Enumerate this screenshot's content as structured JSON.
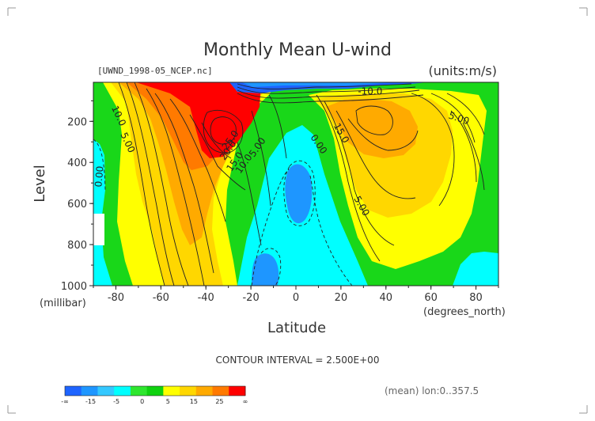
{
  "page": {
    "title": "Monthly Mean U-wind",
    "file_label": "[UWND_1998-05_NCEP.nc]",
    "units_label": "(units:m/s)",
    "contour_interval": "CONTOUR INTERVAL = 2.500E+00",
    "mean_note": "(mean) lon:0..357.5"
  },
  "chart_data": {
    "type": "heatmap",
    "title": "Monthly Mean U-wind",
    "units": "m/s",
    "xlabel": "Latitude",
    "ylabel": "Level",
    "xlim": [
      -90,
      90
    ],
    "ylim": [
      1000,
      10
    ],
    "x_ticks": [
      -80,
      -60,
      -40,
      -20,
      0,
      20,
      40,
      60,
      80
    ],
    "y_ticks": [
      1000,
      800,
      600,
      400,
      200
    ],
    "x_tick_labels": [
      "-80",
      "-60",
      "-40",
      "-20",
      "0",
      "20",
      "40",
      "60",
      "80"
    ],
    "y_tick_labels": [
      "1000",
      "800",
      "600",
      "400",
      "200"
    ],
    "x_unit_label": "(degrees_north)",
    "y_unit_label": "(millibar)",
    "contour_interval": 2.5,
    "legend": {
      "labels": [
        "-∞",
        "-15",
        "-5",
        "0",
        "5",
        "15",
        "25",
        "∞"
      ],
      "colors": [
        "#1e64ff",
        "#1e96ff",
        "#34c8ff",
        "#00ffff",
        "#2ee62e",
        "#0fd20f",
        "#ffff00",
        "#ffd700",
        "#ffaa00",
        "#ff7a00",
        "#ff0000"
      ]
    },
    "contour_labels": [
      {
        "text": "10.0",
        "x": -80,
        "y": 180,
        "rot": 65
      },
      {
        "text": "5.00",
        "x": -76,
        "y": 310,
        "rot": 65
      },
      {
        "text": "0.00",
        "x": -86,
        "y": 470,
        "rot": -85
      },
      {
        "text": "25.0",
        "x": -28,
        "y": 300,
        "rot": -55
      },
      {
        "text": "20.0",
        "x": -29,
        "y": 350,
        "rot": -55
      },
      {
        "text": "15.0",
        "x": -26,
        "y": 405,
        "rot": -55
      },
      {
        "text": "10.0",
        "x": -22,
        "y": 415,
        "rot": -55
      },
      {
        "text": "5.00",
        "x": -16,
        "y": 335,
        "rot": -55
      },
      {
        "text": "0.00",
        "x": 9,
        "y": 320,
        "rot": 55
      },
      {
        "text": "15.0",
        "x": 19,
        "y": 265,
        "rot": 60
      },
      {
        "text": "5.00",
        "x": 28,
        "y": 620,
        "rot": 60
      },
      {
        "text": "5.00",
        "x": 72,
        "y": 200,
        "rot": 18
      },
      {
        "text": "-10.0",
        "x": 33,
        "y": 70,
        "rot": 0
      }
    ]
  }
}
